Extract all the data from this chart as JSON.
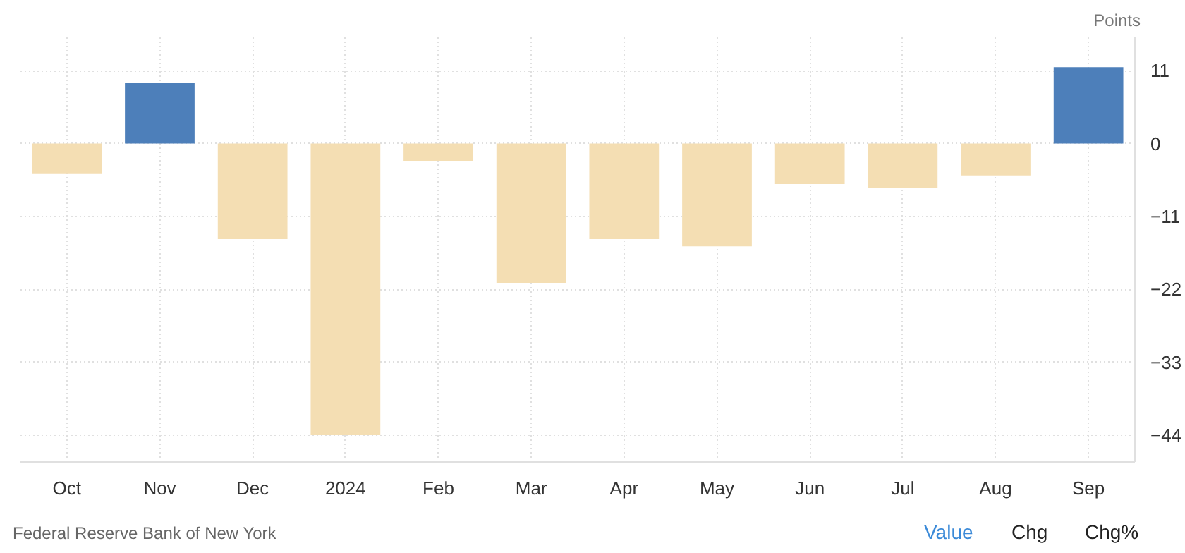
{
  "chart_data": {
    "type": "bar",
    "ylabel": "Points",
    "categories": [
      "Oct",
      "Nov",
      "Dec",
      "2024",
      "Feb",
      "Mar",
      "Apr",
      "May",
      "Jun",
      "Jul",
      "Aug",
      "Sep"
    ],
    "values": [
      -4.5,
      9.1,
      -14.4,
      -43.9,
      -2.6,
      -21.0,
      -14.4,
      -15.5,
      -6.1,
      -6.7,
      -4.8,
      11.5
    ],
    "colors": [
      "#f4deb3",
      "#4d7fba",
      "#f4deb3",
      "#f4deb3",
      "#f4deb3",
      "#f4deb3",
      "#f4deb3",
      "#f4deb3",
      "#f4deb3",
      "#f4deb3",
      "#f4deb3",
      "#4d7fba"
    ],
    "ylim": [
      -48,
      16
    ],
    "yticks": [
      11,
      0,
      -11,
      -22,
      -33,
      -44
    ],
    "grid": true,
    "annotations": [
      "Federal Reserve Bank of New York",
      "Value",
      "Chg",
      "Chg%"
    ]
  }
}
